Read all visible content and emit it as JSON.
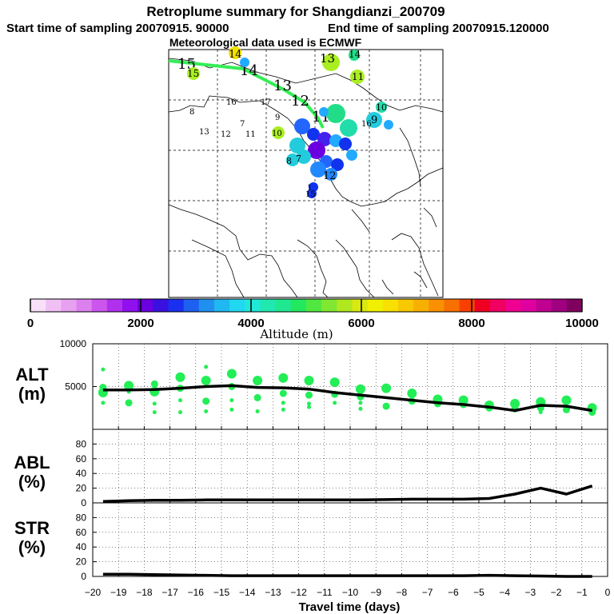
{
  "title": "Retroplume summary for Shangdianzi_200709",
  "subtitle_start": "Start time of sampling 20070915. 90000",
  "subtitle_end": "End time of sampling 20070915.120000",
  "subtitle_met": "Meteorological data used is ECMWF",
  "map": {
    "track_color": "#33ee55",
    "track_labels": [
      "15",
      "14",
      "13",
      "12",
      "11"
    ],
    "cluster_labels": [
      {
        "text": "14",
        "color": "#f2e000"
      },
      {
        "text": "13",
        "color": "#aaee22"
      },
      {
        "text": "14",
        "color": "#22dd88"
      },
      {
        "text": "15",
        "color": "#aaee22"
      },
      {
        "text": "11",
        "color": "#aaee22"
      },
      {
        "text": "16",
        "color": "#22dd88"
      },
      {
        "text": "17",
        "color": "#22aaff"
      },
      {
        "text": "10",
        "color": "#22ddaa"
      },
      {
        "text": "9",
        "color": "#22ccdd"
      },
      {
        "text": "8",
        "color": "#22ccdd"
      },
      {
        "text": "7",
        "color": "#22ccdd"
      },
      {
        "text": "12",
        "color": "#2266ff"
      },
      {
        "text": "1",
        "color": "#1133ee"
      },
      {
        "text": "15",
        "color": "#1133ee"
      },
      {
        "text": "13",
        "color": "#aaee22"
      },
      {
        "text": "12",
        "color": "#aaee22"
      },
      {
        "text": "11",
        "color": "#aaee22"
      },
      {
        "text": "10",
        "color": "#aaee22"
      },
      {
        "text": "9",
        "color": "#aaee22"
      },
      {
        "text": "8",
        "color": "#aaee22"
      },
      {
        "text": "7",
        "color": "#22dd88"
      },
      {
        "text": "16",
        "color": "#22dd88"
      }
    ]
  },
  "colorbar": {
    "colors": [
      "#f8e0f8",
      "#f0c0f4",
      "#e8a0f0",
      "#dc80ee",
      "#cc55ee",
      "#b030ee",
      "#9010ee",
      "#6a00e0",
      "#3a10e0",
      "#1a30f0",
      "#1e60f0",
      "#2090f0",
      "#20b8f0",
      "#20d8f0",
      "#20e8d8",
      "#20e8b0",
      "#20e890",
      "#22e860",
      "#50e840",
      "#80e830",
      "#b0e820",
      "#d8e810",
      "#f0f000",
      "#f8e000",
      "#f8c800",
      "#f8b000",
      "#f89000",
      "#f87000",
      "#f84000",
      "#f00020",
      "#f00060",
      "#f00090",
      "#e000a0",
      "#c00090",
      "#a00080",
      "#800060"
    ],
    "tick_labels": [
      "0",
      "2000",
      "4000",
      "6000",
      "8000",
      "10000"
    ],
    "label": "Altitude (m)"
  },
  "panel_labels": {
    "alt": [
      "ALT",
      "(m)"
    ],
    "abl": [
      "ABL",
      "(%)"
    ],
    "str": [
      "STR",
      "(%)"
    ]
  },
  "chart_data": [
    {
      "type": "line",
      "name": "ALT",
      "ylabel": "ALT (m)",
      "xlabel": "Travel time (days)",
      "xlim": [
        -20,
        0
      ],
      "ylim": [
        0,
        10000
      ],
      "yticks": [
        "10000",
        "5000"
      ],
      "ytick_values": [
        10000,
        5000
      ],
      "x": [
        -19.6,
        -18.6,
        -17.6,
        -16.6,
        -15.6,
        -14.6,
        -13.6,
        -12.6,
        -11.6,
        -10.6,
        -9.6,
        -8.6,
        -7.6,
        -6.6,
        -5.6,
        -4.6,
        -3.6,
        -2.6,
        -1.6,
        -0.6
      ],
      "values": [
        4600,
        4600,
        4650,
        4800,
        5000,
        5100,
        4900,
        4850,
        4700,
        4300,
        4000,
        3700,
        3400,
        3100,
        2900,
        2600,
        2200,
        2800,
        2700,
        2200
      ],
      "marker_color": "#22ee55",
      "marker_series": [
        {
          "x": -19.6,
          "y": [
            4300,
            4900,
            3100,
            7000
          ]
        },
        {
          "x": -18.6,
          "y": [
            5100,
            3100,
            4400
          ]
        },
        {
          "x": -17.6,
          "y": [
            4400,
            5300,
            3000,
            2000
          ]
        },
        {
          "x": -16.6,
          "y": [
            6100,
            4800,
            3400,
            2000
          ]
        },
        {
          "x": -15.6,
          "y": [
            5700,
            3300,
            7300,
            2100
          ]
        },
        {
          "x": -14.6,
          "y": [
            6500,
            5000,
            3400,
            2300
          ]
        },
        {
          "x": -13.6,
          "y": [
            5700,
            3700,
            2100
          ]
        },
        {
          "x": -12.6,
          "y": [
            6000,
            4200,
            2300,
            3100
          ]
        },
        {
          "x": -11.6,
          "y": [
            5700,
            4000,
            2600,
            3000
          ]
        },
        {
          "x": -10.6,
          "y": [
            5500,
            4100,
            3100
          ]
        },
        {
          "x": -9.6,
          "y": [
            4700,
            3800,
            2400,
            3100
          ]
        },
        {
          "x": -8.6,
          "y": [
            4800,
            2700
          ]
        },
        {
          "x": -7.6,
          "y": [
            4200,
            3300
          ]
        },
        {
          "x": -6.6,
          "y": [
            3500,
            3000
          ]
        },
        {
          "x": -5.6,
          "y": [
            3400,
            2900
          ]
        },
        {
          "x": -4.6,
          "y": [
            2800,
            2500
          ]
        },
        {
          "x": -3.6,
          "y": [
            3000,
            2400
          ]
        },
        {
          "x": -2.6,
          "y": [
            3200,
            2500,
            2000
          ]
        },
        {
          "x": -1.6,
          "y": [
            3400,
            2300
          ]
        },
        {
          "x": -0.6,
          "y": [
            2500,
            2000,
            2300
          ]
        }
      ]
    },
    {
      "type": "line",
      "name": "ABL",
      "ylabel": "ABL (%)",
      "xlim": [
        -20,
        0
      ],
      "ylim": [
        0,
        100
      ],
      "yticks": [
        "80",
        "60",
        "40",
        "20",
        "0"
      ],
      "ytick_values": [
        80,
        60,
        40,
        20,
        0
      ],
      "x": [
        -19.6,
        -18.6,
        -17.6,
        -16.6,
        -15.6,
        -14.6,
        -13.6,
        -12.6,
        -11.6,
        -10.6,
        -9.6,
        -8.6,
        -7.6,
        -6.6,
        -5.6,
        -4.6,
        -3.6,
        -2.6,
        -1.6,
        -0.6
      ],
      "values": [
        2,
        3,
        3.5,
        3.5,
        4,
        4,
        4,
        4,
        4,
        4,
        4,
        4.5,
        5,
        5,
        5,
        6,
        12,
        20,
        12,
        23
      ]
    },
    {
      "type": "line",
      "name": "STR",
      "ylabel": "STR (%)",
      "xlim": [
        -20,
        0
      ],
      "ylim": [
        0,
        100
      ],
      "yticks": [
        "80",
        "60",
        "40",
        "20",
        "0"
      ],
      "ytick_values": [
        80,
        60,
        40,
        20,
        0
      ],
      "x": [
        -19.6,
        -18.6,
        -17.6,
        -16.6,
        -15.6,
        -14.6,
        -13.6,
        -12.6,
        -11.6,
        -10.6,
        -9.6,
        -8.6,
        -7.6,
        -6.6,
        -5.6,
        -4.6,
        -3.6,
        -2.6,
        -1.6,
        -0.6
      ],
      "values": [
        3,
        3,
        2.5,
        2,
        1.5,
        1,
        1,
        1,
        1,
        1,
        1,
        1,
        1,
        1,
        1,
        1.5,
        1,
        0.5,
        0,
        0
      ]
    }
  ],
  "xaxis": {
    "tick_labels": [
      "−20",
      "−19",
      "−18",
      "−17",
      "−16",
      "−15",
      "−14",
      "−13",
      "−12",
      "−11",
      "−10",
      "−9",
      "−8",
      "−7",
      "−6",
      "−5",
      "−4",
      "−3",
      "−2",
      "−1",
      "0"
    ],
    "tick_values": [
      -20,
      -19,
      -18,
      -17,
      -16,
      -15,
      -14,
      -13,
      -12,
      -11,
      -10,
      -9,
      -8,
      -7,
      -6,
      -5,
      -4,
      -3,
      -2,
      -1,
      0
    ],
    "label": "Travel time (days)"
  }
}
